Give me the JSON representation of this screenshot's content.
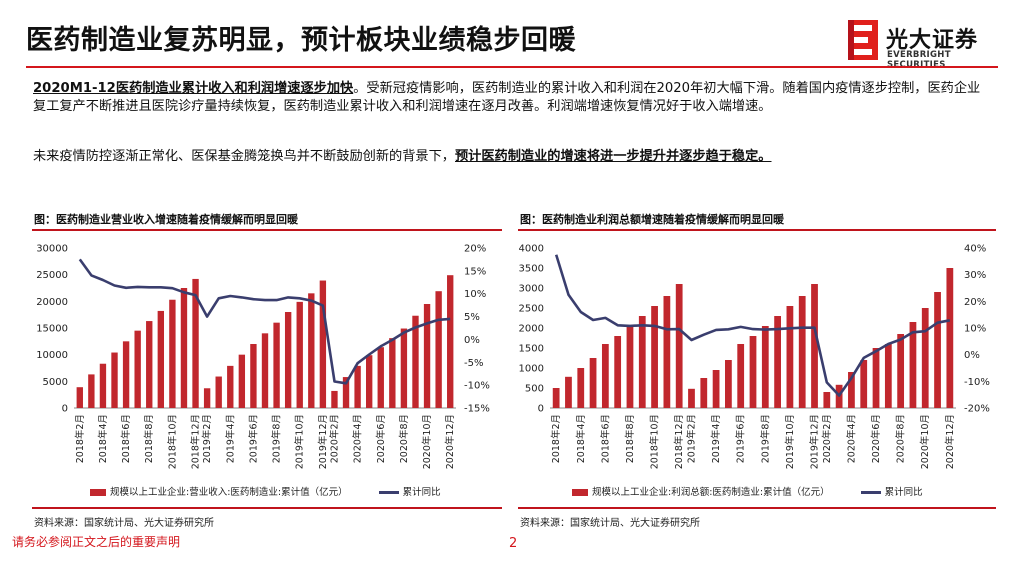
{
  "header": {
    "title": "医药制造业复苏明显，预计板块业绩稳步回暖",
    "logo_cn": "光大证券",
    "logo_en": "EVERBRIGHT SECURITIES"
  },
  "paragraphs": {
    "p1_lead": "2020M1-12医药制造业累计收入和利润增速逐步加快",
    "p1_rest": "。受新冠疫情影响，医药制造业的累计收入和利润在2020年初大幅下滑。随着国内疫情逐步控制，医药企业复工复产不断推进且医院诊疗量持续恢复，医药制造业累计收入和利润增速在逐月改善。利润端增速恢复情况好于收入端增速。",
    "p2_pre": "未来疫情防控逐渐正常化、医保基金腾笼换鸟并不断鼓励创新的背景下，",
    "p2_em": "预计医药制造业的增速将进一步提升并逐步趋于稳定。"
  },
  "footer": {
    "disclaimer": "请务必参阅正文之后的重要声明",
    "page": "2"
  },
  "chart_data": [
    {
      "type": "bar",
      "title": "图：医药制造业营业收入增速随着疫情缓解而明显回暖",
      "categories": [
        "2018年2月",
        "2018年3月",
        "2018年4月",
        "2018年5月",
        "2018年6月",
        "2018年7月",
        "2018年8月",
        "2018年9月",
        "2018年10月",
        "2018年11月",
        "2018年12月",
        "2019年2月",
        "2019年3月",
        "2019年4月",
        "2019年5月",
        "2019年6月",
        "2019年7月",
        "2019年8月",
        "2019年9月",
        "2019年10月",
        "2019年11月",
        "2019年12月",
        "2020年2月",
        "2020年3月",
        "2020年4月",
        "2020年5月",
        "2020年6月",
        "2020年7月",
        "2020年8月",
        "2020年9月",
        "2020年10月",
        "2020年11月",
        "2020年12月"
      ],
      "tick_labels": [
        "2018年2月",
        "2018年4月",
        "2018年6月",
        "2018年8月",
        "2018年10月",
        "2018年12月",
        "2019年2月",
        "2019年4月",
        "2019年6月",
        "2019年8月",
        "2019年10月",
        "2019年12月",
        "2020年2月",
        "2020年4月",
        "2020年6月",
        "2020年8月",
        "2020年10月",
        "2020年12月"
      ],
      "series": [
        {
          "name": "规模以上工业企业:营业收入:医药制造业:累计值（亿元）",
          "axis": "left",
          "type": "bar",
          "color": "#c1272d",
          "values": [
            3900,
            6300,
            8300,
            10400,
            12500,
            14500,
            16300,
            18200,
            20300,
            22500,
            24200,
            3700,
            5900,
            7900,
            10000,
            12000,
            14000,
            16000,
            18000,
            19900,
            21500,
            23900,
            3200,
            5800,
            7900,
            9900,
            11400,
            13100,
            14900,
            17300,
            19500,
            21900,
            24900
          ]
        },
        {
          "name": "累计同比",
          "axis": "right",
          "type": "line",
          "color": "#3a3e6e",
          "values": [
            17.5,
            14,
            13,
            11.8,
            11.3,
            11.5,
            11.4,
            11.4,
            11.2,
            10.3,
            9.7,
            5.0,
            9.0,
            9.5,
            9.2,
            8.8,
            8.6,
            8.6,
            9.2,
            9.0,
            8.5,
            7.4,
            -9.2,
            -9.6,
            -5.2,
            -3.3,
            -1.5,
            -0.1,
            1.5,
            2.6,
            3.5,
            4.3,
            4.5
          ]
        }
      ],
      "ylim_left": [
        0,
        30000
      ],
      "yticks_left": [
        0,
        5000,
        10000,
        15000,
        20000,
        25000,
        30000
      ],
      "ylim_right": [
        -15,
        20
      ],
      "yticks_right": [
        -15,
        -10,
        -5,
        0,
        5,
        10,
        15,
        20
      ],
      "ytick_labels_right": [
        "-15%",
        "-10%",
        "-5%",
        "0%",
        "5%",
        "10%",
        "15%",
        "20%"
      ],
      "legend_bar": "规模以上工业企业:营业收入:医药制造业:累计值（亿元）",
      "legend_line": "累计同比",
      "source": "资料来源：国家统计局、光大证券研究所"
    },
    {
      "type": "bar",
      "title": "图：医药制造业利润总额增速随着疫情缓解而明显回暖",
      "categories": [
        "2018年2月",
        "2018年3月",
        "2018年4月",
        "2018年5月",
        "2018年6月",
        "2018年7月",
        "2018年8月",
        "2018年9月",
        "2018年10月",
        "2018年11月",
        "2018年12月",
        "2019年2月",
        "2019年3月",
        "2019年4月",
        "2019年5月",
        "2019年6月",
        "2019年7月",
        "2019年8月",
        "2019年9月",
        "2019年10月",
        "2019年11月",
        "2019年12月",
        "2020年2月",
        "2020年3月",
        "2020年4月",
        "2020年5月",
        "2020年6月",
        "2020年7月",
        "2020年8月",
        "2020年9月",
        "2020年10月",
        "2020年11月",
        "2020年12月"
      ],
      "tick_labels": [
        "2018年2月",
        "2018年4月",
        "2018年6月",
        "2018年8月",
        "2018年10月",
        "2018年12月",
        "2019年2月",
        "2019年4月",
        "2019年6月",
        "2019年8月",
        "2019年10月",
        "2019年12月",
        "2020年2月",
        "2020年4月",
        "2020年6月",
        "2020年8月",
        "2020年10月",
        "2020年12月"
      ],
      "series": [
        {
          "name": "规模以上工业企业:利润总额:医药制造业:累计值（亿元）",
          "axis": "left",
          "type": "bar",
          "color": "#c1272d",
          "values": [
            500,
            780,
            1000,
            1250,
            1600,
            1800,
            2050,
            2300,
            2550,
            2800,
            3100,
            480,
            750,
            950,
            1200,
            1600,
            1800,
            2050,
            2300,
            2550,
            2800,
            3100,
            400,
            580,
            900,
            1200,
            1500,
            1600,
            1850,
            2150,
            2500,
            2900,
            3500
          ]
        },
        {
          "name": "累计同比",
          "axis": "right",
          "type": "line",
          "color": "#3a3e6e",
          "values": [
            37.5,
            22.5,
            16,
            13,
            13.8,
            11.0,
            10.8,
            11.0,
            10.8,
            9.5,
            9.6,
            5.5,
            7.5,
            9.3,
            9.5,
            10.4,
            9.6,
            9.4,
            9.6,
            9.9,
            10.1,
            10.1,
            -10.4,
            -15.3,
            -8.8,
            -1.2,
            1.3,
            4.0,
            5.7,
            8.4,
            8.8,
            12.0,
            12.9
          ]
        }
      ],
      "ylim_left": [
        0,
        4000
      ],
      "yticks_left": [
        0,
        500,
        1000,
        1500,
        2000,
        2500,
        3000,
        3500,
        4000
      ],
      "ylim_right": [
        -20,
        40
      ],
      "yticks_right": [
        -20,
        -10,
        0,
        10,
        20,
        30,
        40
      ],
      "ytick_labels_right": [
        "-20%",
        "-10%",
        "0%",
        "10%",
        "20%",
        "30%",
        "40%"
      ],
      "legend_bar": "规模以上工业企业:利润总额:医药制造业:累计值（亿元）",
      "legend_line": "累计同比",
      "source": "资料来源：国家统计局、光大证券研究所"
    }
  ]
}
